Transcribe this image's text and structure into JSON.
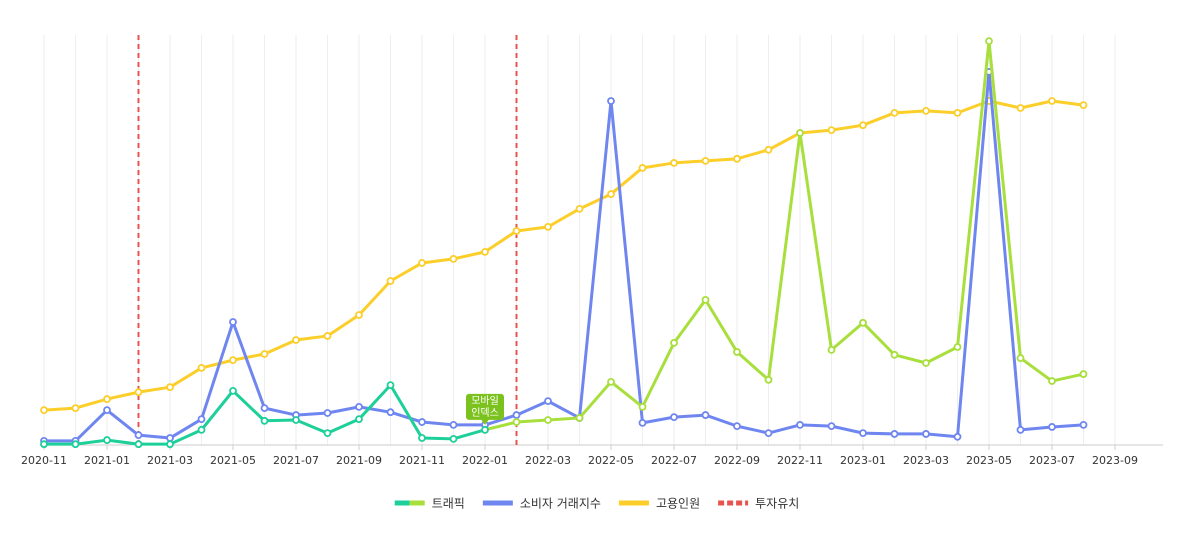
{
  "chart_data": {
    "type": "line",
    "categories": [
      "2020-11",
      null,
      "2021-01",
      null,
      "2021-03",
      null,
      "2021-05",
      null,
      "2021-07",
      null,
      "2021-09",
      null,
      "2021-11",
      null,
      "2022-01",
      null,
      "2022-03",
      null,
      "2022-05",
      null,
      "2022-07",
      null,
      "2022-09",
      null,
      "2022-11",
      null,
      "2023-01",
      null,
      "2023-03",
      null,
      "2023-05",
      null,
      "2023-07",
      null,
      "2023-09"
    ],
    "ylim": [
      0,
      100
    ],
    "grid": true,
    "series": [
      {
        "name": "트래픽",
        "color": [
          "#1dcf98",
          "#a8df3c"
        ],
        "color_split_at": 14,
        "values": [
          0.2,
          0.2,
          1.2,
          0.2,
          0.2,
          3.7,
          13.2,
          5.9,
          6.1,
          2.9,
          6.3,
          14.6,
          1.7,
          1.5,
          3.7,
          5.6,
          6.1,
          6.6,
          15.4,
          9.3,
          24.9,
          35.4,
          22.7,
          15.9,
          76.1,
          23.2,
          29.8,
          22.0,
          20.0,
          23.9,
          98.5,
          21.2,
          15.6,
          17.3,
          null
        ]
      },
      {
        "name": "소비자 거래지수",
        "color": "#6f86f0",
        "values": [
          1.0,
          1.0,
          8.5,
          2.4,
          1.7,
          6.3,
          30.0,
          9.0,
          7.3,
          7.8,
          9.3,
          8.0,
          5.6,
          4.9,
          4.9,
          7.3,
          10.7,
          6.6,
          83.9,
          5.4,
          6.8,
          7.3,
          4.6,
          2.9,
          4.9,
          4.6,
          2.9,
          2.7,
          2.7,
          2.0,
          91.0,
          3.7,
          4.4,
          4.9,
          null
        ]
      },
      {
        "name": "고용인원",
        "color": "#fbce2a",
        "values": [
          8.5,
          9.0,
          11.2,
          12.9,
          14.1,
          18.8,
          20.7,
          22.2,
          25.6,
          26.6,
          31.7,
          40.0,
          44.4,
          45.4,
          47.1,
          52.2,
          53.2,
          57.6,
          61.2,
          67.6,
          68.8,
          69.3,
          69.8,
          72.0,
          76.1,
          76.8,
          78.0,
          81.0,
          81.5,
          81.0,
          83.9,
          82.2,
          83.9,
          82.9,
          null
        ]
      }
    ],
    "events": {
      "name": "투자유치",
      "color": "#e8534f",
      "x_index": [
        3,
        15
      ]
    },
    "annotation": {
      "lines": [
        "모바일",
        "인덱스"
      ],
      "x_index": 14,
      "color": "#7cc21e"
    }
  }
}
